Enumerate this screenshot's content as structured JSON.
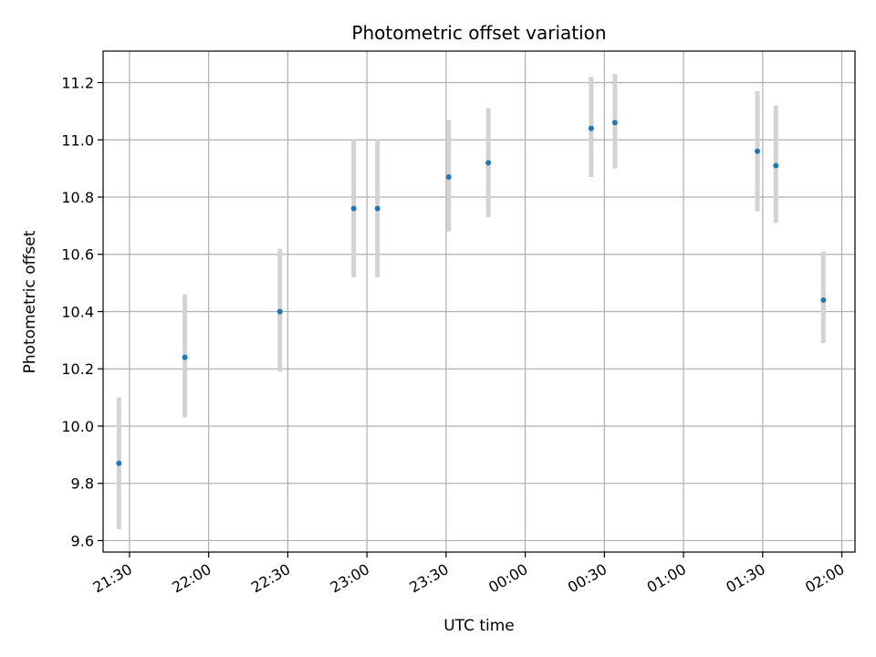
{
  "chart_data": {
    "type": "scatter",
    "title": "Photometric offset variation",
    "xlabel": "UTC time",
    "ylabel": "Photometric offset",
    "xlim": [
      "21:20",
      "02:05"
    ],
    "ylim": [
      9.56,
      11.31
    ],
    "grid": true,
    "x_ticks": [
      "21:30",
      "22:00",
      "22:30",
      "23:00",
      "23:30",
      "00:00",
      "00:30",
      "01:00",
      "01:30",
      "02:00"
    ],
    "y_ticks": [
      "9.6",
      "9.8",
      "10.0",
      "10.2",
      "10.4",
      "10.6",
      "10.8",
      "11.0",
      "11.2"
    ],
    "colors": {
      "points": "#1f77b4",
      "error_bars": "#d3d3d3",
      "grid": "#b0b0b0"
    },
    "points": [
      {
        "x": "21:26",
        "y": 9.87,
        "yerr_low": 9.64,
        "yerr_high": 10.1
      },
      {
        "x": "21:51",
        "y": 10.24,
        "yerr_low": 10.03,
        "yerr_high": 10.46
      },
      {
        "x": "22:27",
        "y": 10.4,
        "yerr_low": 10.19,
        "yerr_high": 10.62
      },
      {
        "x": "22:55",
        "y": 10.76,
        "yerr_low": 10.52,
        "yerr_high": 11.0
      },
      {
        "x": "23:04",
        "y": 10.76,
        "yerr_low": 10.52,
        "yerr_high": 11.0
      },
      {
        "x": "23:31",
        "y": 10.87,
        "yerr_low": 10.68,
        "yerr_high": 11.07
      },
      {
        "x": "23:46",
        "y": 10.92,
        "yerr_low": 10.73,
        "yerr_high": 11.11
      },
      {
        "x": "00:25",
        "y": 11.04,
        "yerr_low": 10.87,
        "yerr_high": 11.22
      },
      {
        "x": "00:34",
        "y": 11.06,
        "yerr_low": 10.9,
        "yerr_high": 11.23
      },
      {
        "x": "01:28",
        "y": 10.96,
        "yerr_low": 10.75,
        "yerr_high": 11.17
      },
      {
        "x": "01:35",
        "y": 10.91,
        "yerr_low": 10.71,
        "yerr_high": 11.12
      },
      {
        "x": "01:53",
        "y": 10.44,
        "yerr_low": 10.29,
        "yerr_high": 10.61
      }
    ]
  }
}
